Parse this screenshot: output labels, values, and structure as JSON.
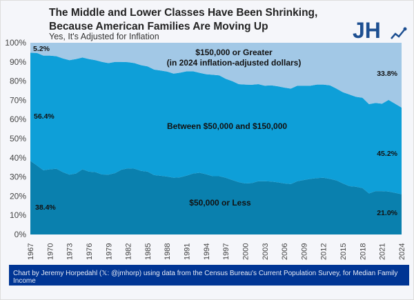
{
  "header": {
    "title": "The Middle and Lower Classes Have Been Shrinking, Because American Families Are Moving Up",
    "subtitle": "Yes, It's Adjusted for Inflation",
    "logo_text": "JH"
  },
  "footer": {
    "credit": "Chart by Jeremy Horpedahl (𝕏: @jmhorp) using data from the Census Bureau's Current Population Survey, for Median Family Income"
  },
  "chart_data": {
    "type": "area",
    "stacked": true,
    "title": "The Middle and Lower Classes Have Been Shrinking, Because American Families Are Moving Up",
    "subtitle": "Yes, It's Adjusted for Inflation",
    "xlabel": "",
    "ylabel": "",
    "ylim": [
      0,
      100
    ],
    "y_ticks": [
      "0%",
      "10%",
      "20%",
      "30%",
      "40%",
      "50%",
      "60%",
      "70%",
      "80%",
      "90%",
      "100%"
    ],
    "x_ticks": [
      "1967",
      "1970",
      "1973",
      "1976",
      "1979",
      "1982",
      "1985",
      "1988",
      "1991",
      "1994",
      "1997",
      "2000",
      "2003",
      "2006",
      "2009",
      "2012",
      "2015",
      "2018",
      "2021",
      "2024"
    ],
    "x": [
      1967,
      1968,
      1969,
      1970,
      1971,
      1972,
      1973,
      1974,
      1975,
      1976,
      1977,
      1978,
      1979,
      1980,
      1981,
      1982,
      1983,
      1984,
      1985,
      1986,
      1987,
      1988,
      1989,
      1990,
      1991,
      1992,
      1993,
      1994,
      1995,
      1996,
      1997,
      1998,
      1999,
      2000,
      2001,
      2002,
      2003,
      2004,
      2005,
      2006,
      2007,
      2008,
      2009,
      2010,
      2011,
      2012,
      2013,
      2014,
      2015,
      2016,
      2017,
      2018,
      2019,
      2020,
      2021,
      2022,
      2023,
      2024
    ],
    "grid": false,
    "legend": "none",
    "series": [
      {
        "name": "$50,000 or Less",
        "color": "#0a80ae",
        "values": [
          38.4,
          36.0,
          33.5,
          34.0,
          34.3,
          32.5,
          31.2,
          31.8,
          34.0,
          32.8,
          32.5,
          31.3,
          31.2,
          32.0,
          33.8,
          34.5,
          34.3,
          33.2,
          32.8,
          31.0,
          30.6,
          30.2,
          29.6,
          29.8,
          30.7,
          31.8,
          32.2,
          31.4,
          30.4,
          30.4,
          29.6,
          28.4,
          27.3,
          26.6,
          26.8,
          27.8,
          27.8,
          27.6,
          27.2,
          26.6,
          26.3,
          27.8,
          28.4,
          29.0,
          29.4,
          29.6,
          29.0,
          28.2,
          26.6,
          25.2,
          24.9,
          24.2,
          21.4,
          22.6,
          22.6,
          22.4,
          21.7,
          21.0
        ]
      },
      {
        "name": "Between $50,000 and $150,000",
        "color": "#0e9fd8",
        "values": [
          56.4,
          58.7,
          59.8,
          59.3,
          58.7,
          59.3,
          59.7,
          59.7,
          58.3,
          58.7,
          58.4,
          58.7,
          58.2,
          58.0,
          56.2,
          55.4,
          55.1,
          55.1,
          54.9,
          55.0,
          54.9,
          54.8,
          54.3,
          54.6,
          54.4,
          53.3,
          52.1,
          52.2,
          52.9,
          52.6,
          51.6,
          51.6,
          51.1,
          51.6,
          51.3,
          50.6,
          49.8,
          50.2,
          50.1,
          50.0,
          49.8,
          49.8,
          49.2,
          48.6,
          48.8,
          48.6,
          48.8,
          47.9,
          47.6,
          47.8,
          46.9,
          47.1,
          46.6,
          46.0,
          45.6,
          47.8,
          46.5,
          45.2
        ]
      },
      {
        "name": "$150,000 or Greater",
        "name_line2": "(in 2024 inflation-adjusted dollars)",
        "color": "#a2c8e6",
        "values": [
          5.2,
          5.3,
          6.7,
          6.7,
          7.0,
          8.2,
          9.1,
          8.5,
          7.7,
          8.5,
          9.1,
          10.0,
          10.6,
          10.0,
          10.0,
          10.1,
          10.6,
          11.7,
          12.3,
          14.0,
          14.5,
          15.0,
          16.1,
          15.6,
          14.9,
          14.9,
          15.7,
          16.4,
          16.7,
          17.0,
          18.8,
          20.0,
          21.6,
          21.8,
          21.9,
          21.6,
          22.4,
          22.2,
          22.7,
          23.4,
          23.9,
          22.4,
          22.4,
          22.4,
          21.8,
          21.8,
          22.2,
          23.9,
          25.8,
          27.0,
          28.2,
          28.7,
          32.0,
          31.4,
          31.8,
          29.8,
          31.8,
          33.8
        ]
      }
    ],
    "annotations": {
      "start": [
        "38.4%",
        "56.4%",
        "5.2%"
      ],
      "end": [
        "21.0%",
        "45.2%",
        "33.8%"
      ]
    }
  }
}
